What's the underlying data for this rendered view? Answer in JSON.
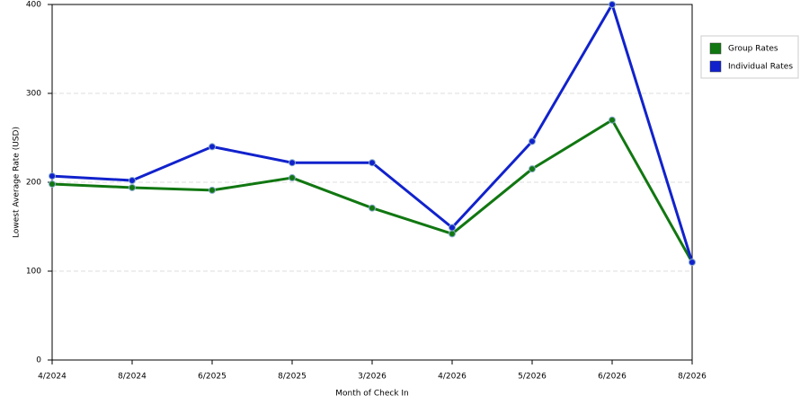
{
  "chart_data": {
    "type": "line",
    "x_label": "Month of Check In",
    "y_label": "Lowest Average Rate (USD)",
    "categories": [
      "4/2024",
      "8/2024",
      "6/2025",
      "8/2025",
      "3/2026",
      "4/2026",
      "5/2026",
      "6/2026",
      "8/2026"
    ],
    "series": [
      {
        "name": "Group Rates",
        "color": "#117711",
        "values": [
          198,
          194,
          191,
          205,
          171,
          142,
          215,
          270,
          110
        ]
      },
      {
        "name": "Individual Rates",
        "color": "#1122cc",
        "values": [
          207,
          202,
          240,
          222,
          222,
          149,
          246,
          400,
          110
        ]
      }
    ],
    "ylim": [
      0,
      400
    ],
    "yticks": [
      0,
      100,
      200,
      300,
      400
    ],
    "grid": true,
    "legend": "right"
  }
}
